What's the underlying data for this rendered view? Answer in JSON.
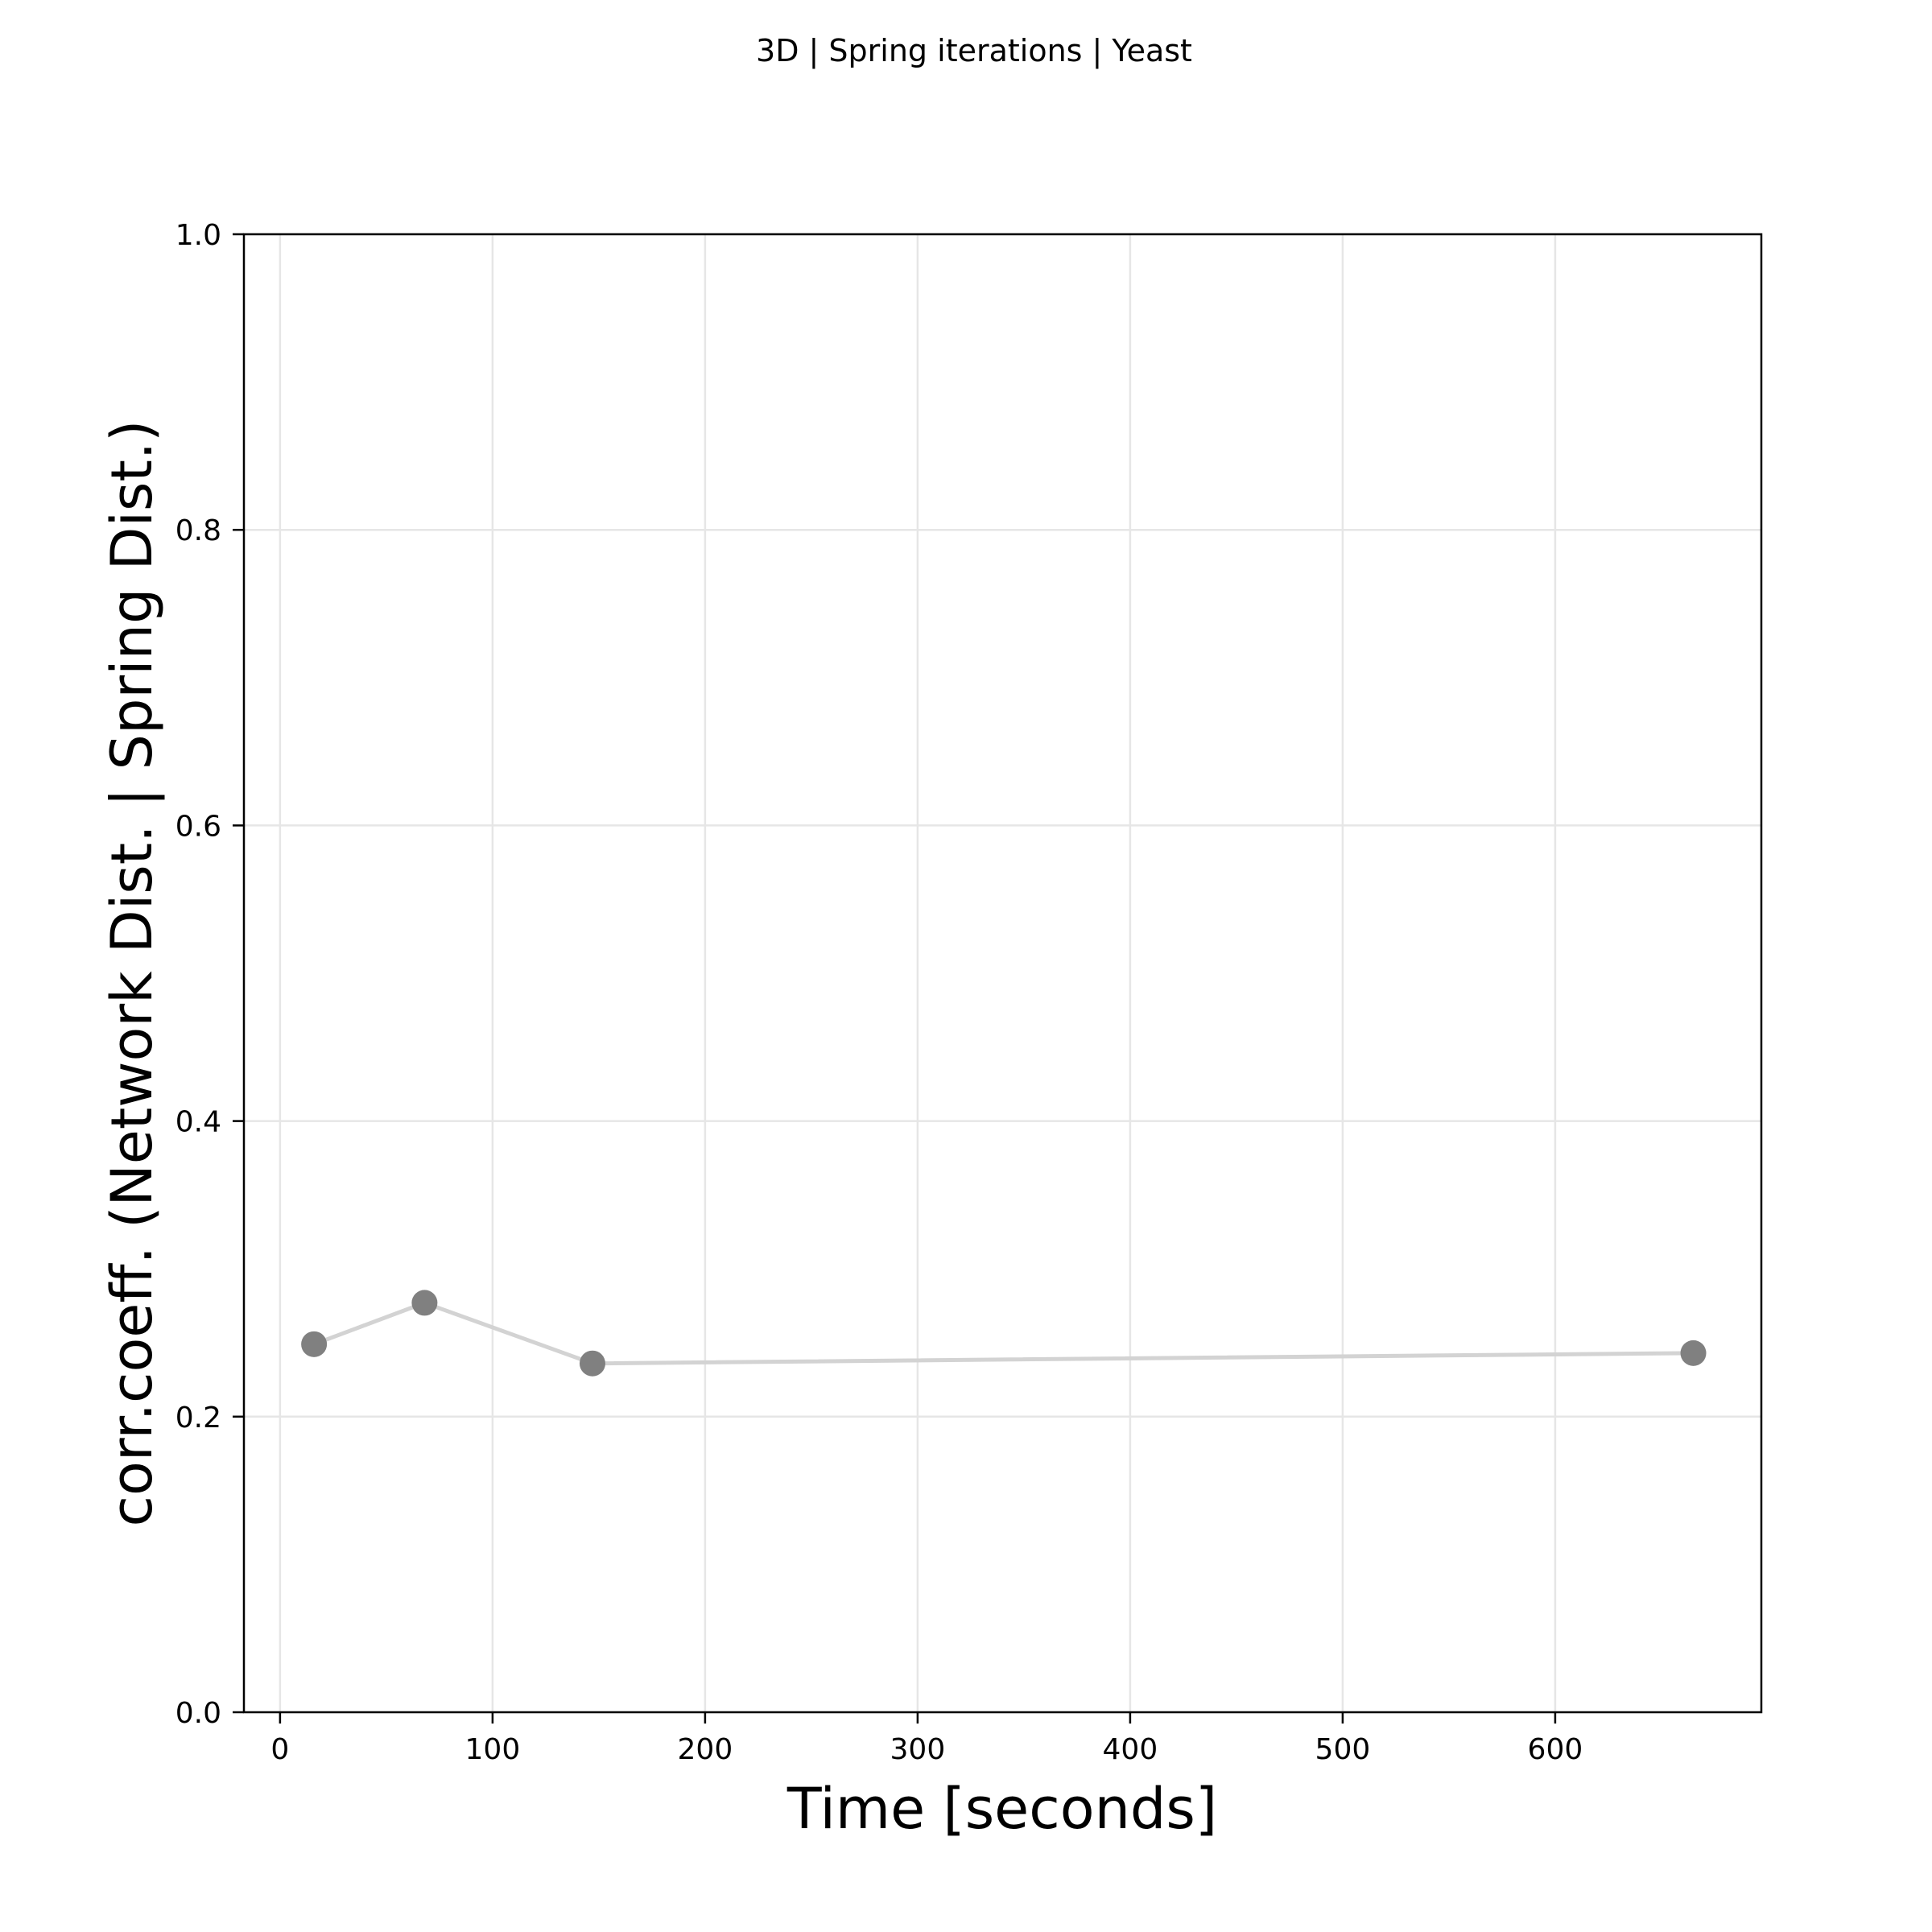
{
  "chart_data": {
    "type": "line",
    "title": "3D | Spring iterations | Yeast",
    "xlabel": "Time [seconds]",
    "ylabel": "corr.coeff. (Network Dist. | Spring Dist.)",
    "xlim": [
      -17,
      697
    ],
    "ylim": [
      0.0,
      1.0
    ],
    "xticks": [
      0,
      100,
      200,
      300,
      400,
      500,
      600
    ],
    "xtick_labels": [
      "0",
      "100",
      "200",
      "300",
      "400",
      "500",
      "600"
    ],
    "yticks": [
      0.0,
      0.2,
      0.4,
      0.6,
      0.8,
      1.0
    ],
    "ytick_labels": [
      "0.0",
      "0.2",
      "0.4",
      "0.6",
      "0.8",
      "1.0"
    ],
    "grid": true,
    "series": [
      {
        "name": "spring iterations",
        "x": [
          16,
          68,
          147,
          665
        ],
        "y": [
          0.249,
          0.277,
          0.236,
          0.243
        ],
        "line_color": "#d3d3d3",
        "marker_color": "#808080"
      }
    ]
  }
}
